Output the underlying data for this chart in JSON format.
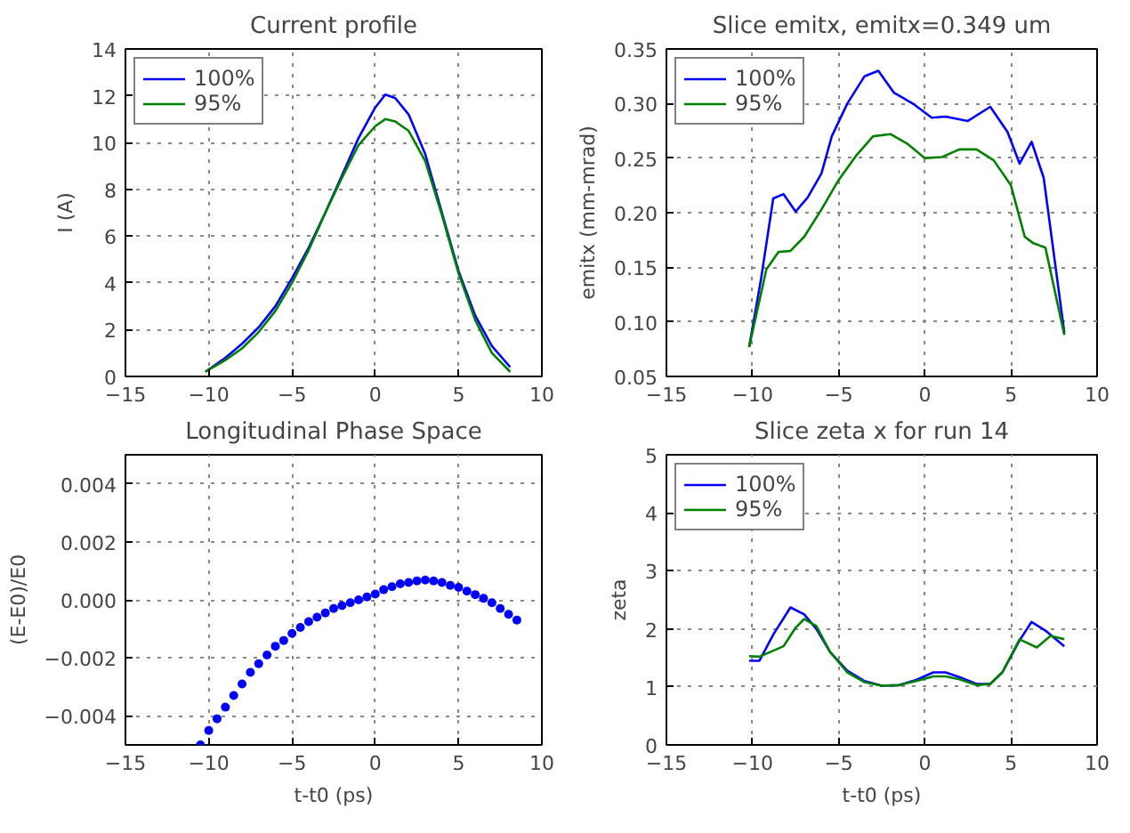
{
  "chart_data": [
    {
      "type": "line",
      "title": "Current profile",
      "ylabel": "I (A)",
      "xlim": [
        -15,
        10
      ],
      "ylim": [
        0,
        14
      ],
      "xticks": [
        {
          "value": -15,
          "label": "−15"
        },
        {
          "value": -10,
          "label": "−10"
        },
        {
          "value": -5,
          "label": "−5"
        },
        0,
        5,
        10
      ],
      "yticks": [
        0,
        2,
        4,
        6,
        8,
        10,
        12,
        14
      ],
      "grid": true,
      "legend": "top left",
      "series": [
        {
          "name": "100%",
          "color": "#0000ff",
          "x": [
            -10.2,
            -9,
            -8,
            -7,
            -6,
            -5,
            -4,
            -3,
            -2,
            -1,
            0,
            0.6,
            1.2,
            2,
            3,
            4,
            5,
            6,
            7,
            8.1
          ],
          "values": [
            0.2,
            0.8,
            1.4,
            2.1,
            3,
            4.2,
            5.5,
            7,
            8.6,
            10.2,
            11.5,
            12.05,
            11.9,
            11.2,
            9.5,
            7,
            4.5,
            2.6,
            1.3,
            0.4
          ]
        },
        {
          "name": "95%",
          "color": "#008000",
          "x": [
            -10.2,
            -9,
            -8,
            -7,
            -6,
            -5,
            -4,
            -3,
            -2,
            -1,
            0,
            0.6,
            1.2,
            2,
            3,
            4,
            5,
            6,
            7,
            8.1
          ],
          "values": [
            0.2,
            0.7,
            1.2,
            1.9,
            2.8,
            4,
            5.4,
            7,
            8.5,
            9.9,
            10.7,
            11,
            10.9,
            10.5,
            9.2,
            6.9,
            4.4,
            2.4,
            1.0,
            0.2
          ]
        }
      ]
    },
    {
      "type": "line",
      "title": "Slice emitx, emitx=0.349 um",
      "ylabel": "emitx (mm-mrad)",
      "xlim": [
        -15,
        10
      ],
      "ylim": [
        0.05,
        0.35
      ],
      "xticks": [
        {
          "value": -15,
          "label": "−15"
        },
        {
          "value": -10,
          "label": "−10"
        },
        {
          "value": -5,
          "label": "−5"
        },
        0,
        5,
        10
      ],
      "yticks": [
        {
          "value": 0.05,
          "label": "0.05"
        },
        {
          "value": 0.1,
          "label": "0.10"
        },
        {
          "value": 0.15,
          "label": "0.15"
        },
        {
          "value": 0.2,
          "label": "0.20"
        },
        {
          "value": 0.25,
          "label": "0.25"
        },
        {
          "value": 0.3,
          "label": "0.30"
        },
        {
          "value": 0.35,
          "label": "0.35"
        }
      ],
      "grid": true,
      "legend": "top left",
      "series": [
        {
          "name": "100%",
          "color": "#0000ff",
          "x": [
            -10.2,
            -9.5,
            -8.8,
            -8.2,
            -7.5,
            -6.8,
            -6,
            -5.4,
            -4.5,
            -3.5,
            -2.7,
            -1.8,
            -0.7,
            0.4,
            1.2,
            2.5,
            3.8,
            4.8,
            5.5,
            6.2,
            6.9,
            8.1
          ],
          "values": [
            0.077,
            0.14,
            0.213,
            0.217,
            0.201,
            0.214,
            0.236,
            0.27,
            0.3,
            0.325,
            0.33,
            0.31,
            0.3,
            0.287,
            0.288,
            0.284,
            0.297,
            0.274,
            0.245,
            0.265,
            0.232,
            0.09
          ]
        },
        {
          "name": "95%",
          "color": "#008000",
          "x": [
            -10.2,
            -9.2,
            -8.5,
            -7.8,
            -7,
            -6,
            -5,
            -4,
            -3,
            -2,
            -1,
            0,
            1,
            2,
            3,
            4,
            5,
            5.8,
            6.3,
            7,
            8.1
          ],
          "values": [
            0.077,
            0.148,
            0.164,
            0.165,
            0.178,
            0.203,
            0.23,
            0.252,
            0.27,
            0.272,
            0.263,
            0.25,
            0.251,
            0.258,
            0.258,
            0.248,
            0.225,
            0.178,
            0.172,
            0.168,
            0.088
          ]
        }
      ]
    },
    {
      "type": "scatter",
      "title": "Longitudinal Phase Space",
      "xlabel": "t-t0 (ps)",
      "ylabel": "(E-E0)/E0",
      "xlim": [
        -15,
        10
      ],
      "ylim": [
        -0.005,
        0.005
      ],
      "xticks": [
        {
          "value": -15,
          "label": "−15"
        },
        {
          "value": -10,
          "label": "−10"
        },
        {
          "value": -5,
          "label": "−5"
        },
        0,
        5,
        10
      ],
      "yticks": [
        {
          "value": -0.004,
          "label": "−0.004"
        },
        {
          "value": -0.002,
          "label": "−0.002"
        },
        {
          "value": 0,
          "label": "0.000"
        },
        {
          "value": 0.002,
          "label": "0.002"
        },
        {
          "value": 0.004,
          "label": "0.004"
        }
      ],
      "grid": true,
      "marker": "circle",
      "series": [
        {
          "color": "#0000ff",
          "x": [
            -10.5,
            -10,
            -9.5,
            -9,
            -8.5,
            -8,
            -7.5,
            -7,
            -6.5,
            -6,
            -5.5,
            -5,
            -4.5,
            -4,
            -3.5,
            -3,
            -2.5,
            -2,
            -1.5,
            -1,
            -0.5,
            0,
            0.5,
            1,
            1.5,
            2,
            2.5,
            3,
            3.5,
            4,
            4.5,
            5,
            5.5,
            6,
            6.5,
            7,
            7.5,
            8,
            8.5
          ],
          "values": [
            -0.005,
            -0.0045,
            -0.0041,
            -0.0037,
            -0.0033,
            -0.0029,
            -0.0025,
            -0.0022,
            -0.0019,
            -0.0016,
            -0.0014,
            -0.00116,
            -0.00095,
            -0.00075,
            -0.0006,
            -0.00045,
            -0.0003,
            -0.0002,
            -0.0001,
            0.0,
            0.0001,
            0.0002,
            0.00035,
            0.00045,
            0.00055,
            0.0006,
            0.00065,
            0.00068,
            0.00065,
            0.0006,
            0.0005,
            0.00043,
            0.0003,
            0.00018,
            5e-05,
            -0.0001,
            -0.0003,
            -0.0005,
            -0.0007
          ]
        }
      ]
    },
    {
      "type": "line",
      "title": "Slice zeta x for run 14",
      "xlabel": "t-t0 (ps)",
      "ylabel": "zeta",
      "xlim": [
        -15,
        10
      ],
      "ylim": [
        0,
        5
      ],
      "xticks": [
        {
          "value": -15,
          "label": "−15"
        },
        {
          "value": -10,
          "label": "−10"
        },
        {
          "value": -5,
          "label": "−5"
        },
        0,
        5,
        10
      ],
      "yticks": [
        0,
        1,
        2,
        3,
        4,
        5
      ],
      "grid": true,
      "legend": "top left",
      "series": [
        {
          "name": "100%",
          "color": "#0000ff",
          "x": [
            -10.2,
            -9.6,
            -8.8,
            -7.8,
            -7,
            -6.3,
            -5.5,
            -4.5,
            -3.5,
            -2.5,
            -1.5,
            -0.5,
            0.5,
            1.2,
            2,
            3,
            3.8,
            4.5,
            5.5,
            6.2,
            7,
            8.1
          ],
          "values": [
            1.45,
            1.45,
            1.9,
            2.37,
            2.25,
            2.0,
            1.6,
            1.28,
            1.1,
            1.02,
            1.03,
            1.12,
            1.25,
            1.25,
            1.17,
            1.05,
            1.05,
            1.25,
            1.8,
            2.12,
            1.97,
            1.7
          ]
        },
        {
          "name": "95%",
          "color": "#008000",
          "x": [
            -10.2,
            -9.6,
            -8.2,
            -7.5,
            -7,
            -6.3,
            -5.5,
            -4.5,
            -3.5,
            -2.5,
            -1.5,
            -0.5,
            0.5,
            1.2,
            2,
            3,
            3.8,
            4.5,
            5.5,
            6.5,
            7.3,
            8.1
          ],
          "values": [
            1.53,
            1.52,
            1.7,
            2.02,
            2.17,
            2.05,
            1.6,
            1.25,
            1.08,
            1.02,
            1.03,
            1.1,
            1.18,
            1.18,
            1.13,
            1.03,
            1.05,
            1.25,
            1.82,
            1.68,
            1.88,
            1.82
          ]
        }
      ]
    }
  ]
}
